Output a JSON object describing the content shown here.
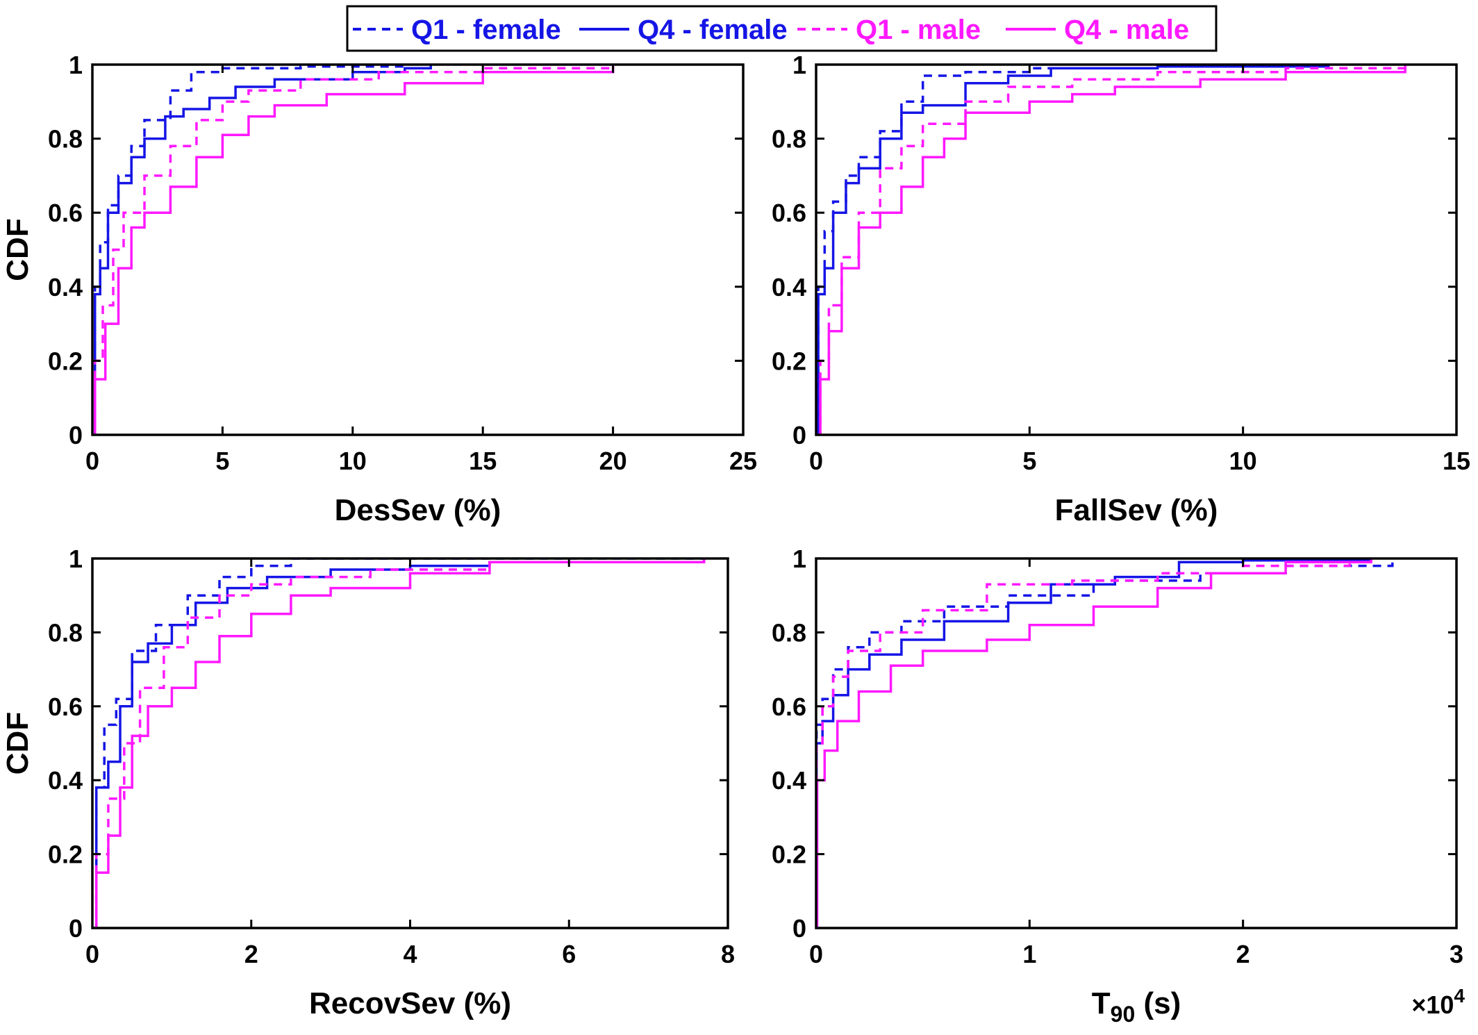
{
  "legend": {
    "entries": [
      {
        "label": "Q1 - female",
        "color": "#1515e6",
        "dash": true
      },
      {
        "label": "Q4 - female",
        "color": "#1515e6",
        "dash": false
      },
      {
        "label": "Q1 - male",
        "color": "#ff19ff",
        "dash": true
      },
      {
        "label": "Q4 - male",
        "color": "#ff19ff",
        "dash": false
      }
    ]
  },
  "chart_data": [
    {
      "type": "line",
      "xlabel": "DesSev (%)",
      "ylabel": "CDF",
      "xlim": [
        0,
        25
      ],
      "ylim": [
        0,
        1
      ],
      "xticks": [
        "0",
        "5",
        "10",
        "15",
        "20",
        "25"
      ],
      "yticks": [
        "0",
        "0.2",
        "0.4",
        "0.6",
        "0.8",
        "1"
      ],
      "series": [
        {
          "name": "Q1 - female",
          "x": [
            0,
            0.1,
            0.3,
            0.6,
            1.0,
            1.5,
            2.0,
            3.0,
            3.8,
            5,
            8,
            12
          ],
          "y": [
            0,
            0.4,
            0.52,
            0.62,
            0.7,
            0.78,
            0.85,
            0.93,
            0.98,
            0.99,
            0.995,
            1
          ]
        },
        {
          "name": "Q4 - female",
          "x": [
            0,
            0.1,
            0.3,
            0.6,
            1.0,
            1.5,
            2.0,
            2.8,
            3.5,
            4.5,
            5.5,
            7,
            10,
            12,
            13
          ],
          "y": [
            0,
            0.38,
            0.45,
            0.6,
            0.68,
            0.75,
            0.8,
            0.86,
            0.88,
            0.91,
            0.94,
            0.96,
            0.98,
            0.99,
            1
          ]
        },
        {
          "name": "Q1 - male",
          "x": [
            0,
            0.1,
            0.4,
            0.8,
            1.2,
            2.0,
            3.0,
            4.0,
            5.0,
            6.0,
            8.0,
            11,
            15,
            20
          ],
          "y": [
            0,
            0.2,
            0.35,
            0.5,
            0.6,
            0.7,
            0.78,
            0.85,
            0.9,
            0.93,
            0.96,
            0.98,
            0.99,
            1
          ]
        },
        {
          "name": "Q4 - male",
          "x": [
            0,
            0.1,
            0.5,
            1.0,
            1.5,
            2.0,
            3.0,
            4.0,
            5.0,
            6.0,
            7.0,
            9.0,
            12,
            15,
            20
          ],
          "y": [
            0,
            0.15,
            0.3,
            0.45,
            0.56,
            0.6,
            0.67,
            0.75,
            0.81,
            0.86,
            0.89,
            0.92,
            0.95,
            0.98,
            1
          ]
        }
      ]
    },
    {
      "type": "line",
      "xlabel": "FallSev (%)",
      "ylabel": "",
      "xlim": [
        0,
        15
      ],
      "ylim": [
        0,
        1
      ],
      "xticks": [
        "0",
        "5",
        "10",
        "15"
      ],
      "yticks": [
        "0",
        "0.2",
        "0.4",
        "0.6",
        "0.8",
        "1"
      ],
      "series": [
        {
          "name": "Q1 - female",
          "x": [
            0,
            0.05,
            0.2,
            0.4,
            0.7,
            1.0,
            1.5,
            2.0,
            2.5,
            3.5,
            5,
            8,
            12
          ],
          "y": [
            0,
            0.4,
            0.55,
            0.63,
            0.7,
            0.75,
            0.82,
            0.9,
            0.97,
            0.98,
            0.99,
            0.995,
            1
          ]
        },
        {
          "name": "Q4 - female",
          "x": [
            0,
            0.05,
            0.2,
            0.4,
            0.7,
            1.0,
            1.5,
            2.0,
            2.5,
            3.5,
            4.5,
            5.5,
            8,
            12
          ],
          "y": [
            0,
            0.38,
            0.45,
            0.6,
            0.68,
            0.72,
            0.8,
            0.87,
            0.89,
            0.95,
            0.97,
            0.99,
            0.995,
            1
          ]
        },
        {
          "name": "Q1 - male",
          "x": [
            0,
            0.1,
            0.3,
            0.6,
            1.0,
            1.5,
            2.0,
            2.5,
            3.5,
            4.5,
            6.0,
            8.0,
            11,
            13.8
          ],
          "y": [
            0,
            0.2,
            0.35,
            0.48,
            0.6,
            0.72,
            0.78,
            0.84,
            0.9,
            0.94,
            0.96,
            0.98,
            0.99,
            1
          ]
        },
        {
          "name": "Q4 - male",
          "x": [
            0,
            0.1,
            0.3,
            0.6,
            1.0,
            1.5,
            2.0,
            2.5,
            3.0,
            3.5,
            5.0,
            6.0,
            7.0,
            9.0,
            11,
            13.8
          ],
          "y": [
            0,
            0.15,
            0.28,
            0.45,
            0.56,
            0.6,
            0.67,
            0.75,
            0.8,
            0.87,
            0.9,
            0.92,
            0.94,
            0.96,
            0.98,
            1
          ]
        }
      ]
    },
    {
      "type": "line",
      "xlabel": "RecovSev (%)",
      "ylabel": "CDF",
      "xlim": [
        0,
        8
      ],
      "ylim": [
        0,
        1
      ],
      "xticks": [
        "0",
        "2",
        "4",
        "6",
        "8"
      ],
      "yticks": [
        "0",
        "0.2",
        "0.4",
        "0.6",
        "0.8",
        "1"
      ],
      "series": [
        {
          "name": "Q1 - female",
          "x": [
            0,
            0.05,
            0.15,
            0.3,
            0.5,
            0.8,
            1.2,
            1.6,
            2.0,
            2.5,
            4.0,
            7.7
          ],
          "y": [
            0,
            0.38,
            0.55,
            0.62,
            0.75,
            0.82,
            0.9,
            0.95,
            0.98,
            1,
            1,
            1
          ]
        },
        {
          "name": "Q4 - female",
          "x": [
            0,
            0.05,
            0.2,
            0.35,
            0.5,
            0.7,
            1.0,
            1.3,
            1.7,
            2.2,
            3.0,
            4.0,
            5.0,
            7.7
          ],
          "y": [
            0,
            0.38,
            0.45,
            0.6,
            0.72,
            0.77,
            0.82,
            0.88,
            0.92,
            0.95,
            0.97,
            0.98,
            0.99,
            1
          ]
        },
        {
          "name": "Q1 - male",
          "x": [
            0,
            0.05,
            0.2,
            0.4,
            0.6,
            0.9,
            1.2,
            1.6,
            2.0,
            2.5,
            3.5,
            5.0,
            7.7
          ],
          "y": [
            0,
            0.2,
            0.35,
            0.5,
            0.65,
            0.76,
            0.84,
            0.9,
            0.93,
            0.95,
            0.97,
            0.99,
            1
          ]
        },
        {
          "name": "Q4 - male",
          "x": [
            0,
            0.05,
            0.2,
            0.35,
            0.5,
            0.7,
            1.0,
            1.3,
            1.6,
            2.0,
            2.5,
            3.0,
            4.0,
            5.0,
            7.7
          ],
          "y": [
            0,
            0.15,
            0.25,
            0.38,
            0.52,
            0.6,
            0.65,
            0.72,
            0.79,
            0.85,
            0.9,
            0.92,
            0.96,
            0.99,
            1
          ]
        }
      ]
    },
    {
      "type": "line",
      "xlabel": "T",
      "xlabel_subscript": "90",
      "xlabel_suffix": " (s)",
      "x_exponent_base": "×10",
      "x_exponent_power": "4",
      "ylabel": "",
      "xlim": [
        0,
        3
      ],
      "ylim": [
        0,
        1
      ],
      "xticks": [
        "0",
        "1",
        "2",
        "3"
      ],
      "yticks": [
        "0",
        "0.2",
        "0.4",
        "0.6",
        "0.8",
        "1"
      ],
      "series": [
        {
          "name": "Q1 - female",
          "x": [
            0,
            0.002,
            0.03,
            0.08,
            0.15,
            0.25,
            0.4,
            0.6,
            0.9,
            1.3,
            1.8,
            2.2,
            2.7
          ],
          "y": [
            0,
            0.55,
            0.62,
            0.7,
            0.76,
            0.8,
            0.83,
            0.87,
            0.9,
            0.94,
            0.96,
            0.98,
            1
          ]
        },
        {
          "name": "Q4 - female",
          "x": [
            0,
            0.002,
            0.03,
            0.08,
            0.15,
            0.25,
            0.4,
            0.6,
            0.9,
            1.1,
            1.4,
            1.7,
            2.0,
            2.6
          ],
          "y": [
            0,
            0.5,
            0.56,
            0.63,
            0.7,
            0.74,
            0.78,
            0.83,
            0.88,
            0.93,
            0.95,
            0.99,
            0.995,
            1
          ]
        },
        {
          "name": "Q1 - male",
          "x": [
            0,
            0.002,
            0.03,
            0.08,
            0.15,
            0.3,
            0.5,
            0.8,
            1.2,
            1.6,
            2.0,
            2.5
          ],
          "y": [
            0,
            0.5,
            0.6,
            0.68,
            0.75,
            0.8,
            0.86,
            0.93,
            0.94,
            0.96,
            0.98,
            1
          ]
        },
        {
          "name": "Q4 - male",
          "x": [
            0,
            0.005,
            0.04,
            0.1,
            0.2,
            0.35,
            0.5,
            0.8,
            1.0,
            1.3,
            1.6,
            1.85,
            2.2,
            2.6
          ],
          "y": [
            0,
            0.4,
            0.48,
            0.56,
            0.64,
            0.71,
            0.75,
            0.78,
            0.82,
            0.87,
            0.92,
            0.96,
            0.99,
            1
          ]
        }
      ]
    }
  ]
}
